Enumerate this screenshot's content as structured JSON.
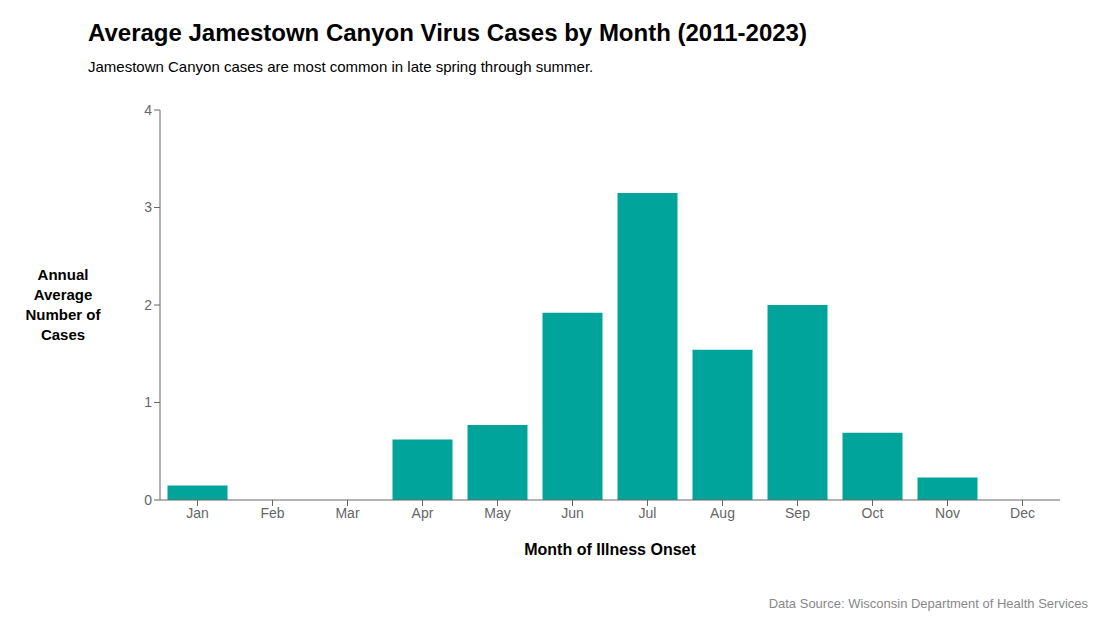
{
  "chart_data": {
    "type": "bar",
    "title": "Average Jamestown Canyon Virus Cases by Month (2011-2023)",
    "subtitle": "Jamestown Canyon cases are most common in late spring through summer.",
    "x_label": "Month of Illness Onset",
    "y_label": "Annual\nAverage\nNumber of\nCases",
    "categories": [
      "Jan",
      "Feb",
      "Mar",
      "Apr",
      "May",
      "Jun",
      "Jul",
      "Aug",
      "Sep",
      "Oct",
      "Nov",
      "Dec"
    ],
    "values": [
      0.15,
      0.0,
      0.0,
      0.62,
      0.77,
      1.92,
      3.15,
      1.54,
      2.0,
      0.69,
      0.23,
      0.0
    ],
    "color": "#00A49A",
    "ylim": [
      0,
      4
    ],
    "yticks": [
      0,
      1,
      2,
      3,
      4
    ],
    "grid": false,
    "annotations": [
      "Data Source: Wisconsin Department of Health Services"
    ]
  }
}
